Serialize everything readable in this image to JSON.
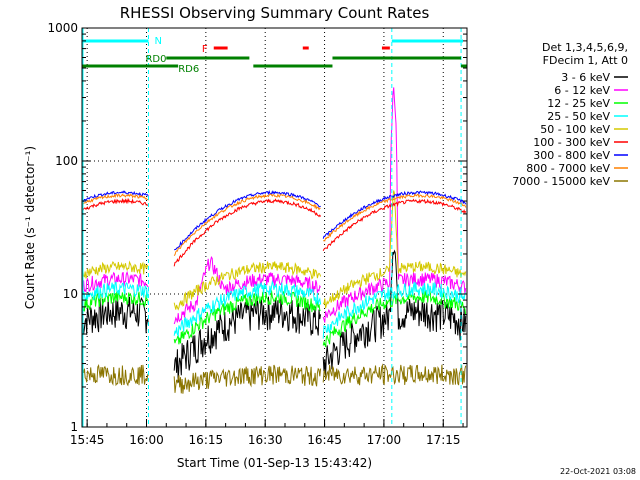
{
  "chart_data": {
    "type": "line",
    "title": "RHESSI Observing Summary Count Rates",
    "xlabel": "Start Time (01-Sep-13 15:43:42)",
    "ylabel": "Count Rate (s⁻¹ detector⁻¹)",
    "x_ticks": [
      "15:45",
      "16:00",
      "16:15",
      "16:30",
      "16:45",
      "17:00",
      "17:15"
    ],
    "y_ticks": [
      "1",
      "10",
      "100",
      "1000"
    ],
    "xlim": [
      "15:43:42",
      "17:21:00"
    ],
    "ylim": [
      1,
      1000
    ],
    "yscale": "log",
    "grid": true,
    "legend_header": [
      "Det 1,3,4,5,6,9,",
      "FDecim 1, Att 0"
    ],
    "legend_position": "right",
    "series": [
      {
        "name": "3 - 6 keV",
        "color": "#000000"
      },
      {
        "name": "6 - 12 keV",
        "color": "#ff00ff"
      },
      {
        "name": "12 - 25 keV",
        "color": "#00ff00"
      },
      {
        "name": "25 - 50 keV",
        "color": "#00ffff"
      },
      {
        "name": "50 - 100 keV",
        "color": "#d4c800"
      },
      {
        "name": "100 - 300 keV",
        "color": "#ff0000"
      },
      {
        "name": "300 - 800 keV",
        "color": "#0000ff"
      },
      {
        "name": "800 - 7000 keV",
        "color": "#ff8000"
      },
      {
        "name": "7000 - 15000 keV",
        "color": "#8b7500"
      }
    ],
    "flags": [
      {
        "label": "N",
        "color": "#00ffff"
      },
      {
        "label": "RD0",
        "color": "#008000"
      },
      {
        "label": "F",
        "color": "#ff0000"
      },
      {
        "label": "RD6",
        "color": "#008000"
      }
    ],
    "timestamp": "22-Oct-2021 03:08"
  }
}
